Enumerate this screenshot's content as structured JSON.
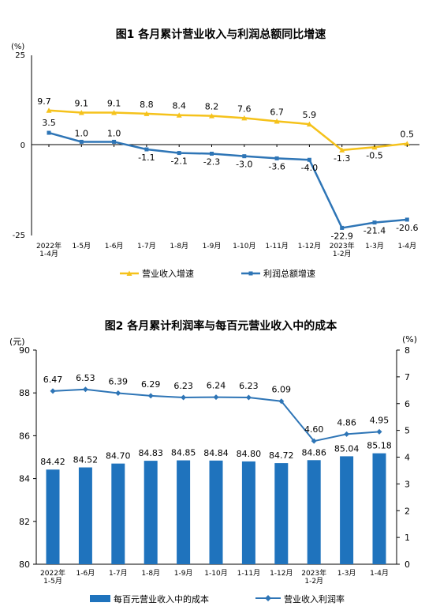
{
  "chart_data": [
    {
      "type": "line",
      "title": "图1  各月累计营业收入与利润总额同比增速",
      "yunit": "(%)",
      "ylim": [
        -25,
        25
      ],
      "yticks": [
        "25",
        "0",
        "-25"
      ],
      "categories": [
        "2022年\n1-4月",
        "1-5月",
        "1-6月",
        "1-7月",
        "1-8月",
        "1-9月",
        "1-10月",
        "1-11月",
        "1-12月",
        "2023年\n1-2月",
        "1-3月",
        "1-4月"
      ],
      "series": [
        {
          "name": "营业收入增速",
          "color": "#f5c21b",
          "marker": "triangle",
          "values": [
            9.7,
            9.1,
            9.1,
            8.8,
            8.4,
            8.2,
            7.6,
            6.7,
            5.9,
            -1.3,
            -0.5,
            0.5
          ],
          "labels": [
            "9.7",
            "9.1",
            "9.1",
            "8.8",
            "8.4",
            "8.2",
            "7.6",
            "6.7",
            "5.9",
            "-1.3",
            "-0.5",
            "0.5"
          ]
        },
        {
          "name": "利润总额增速",
          "color": "#2e75b6",
          "marker": "square",
          "values": [
            3.5,
            1.0,
            1.0,
            -1.1,
            -2.1,
            -2.3,
            -3.0,
            -3.6,
            -4.0,
            -22.9,
            -21.4,
            -20.6
          ],
          "labels": [
            "3.5",
            "1.0",
            "1.0",
            "-1.1",
            "-2.1",
            "-2.3",
            "-3.0",
            "-3.6",
            "-4.0",
            "-22.9",
            "-21.4",
            "-20.6"
          ]
        }
      ],
      "legend": "bottom",
      "grid": false
    },
    {
      "type": "bar",
      "title": "图2  各月累计利润率与每百元营业收入中的成本",
      "yunit_left": "(元)",
      "yunit_right": "(%)",
      "ylim_left": [
        80,
        90
      ],
      "ylim_right": [
        0,
        8
      ],
      "yticks_left": [
        "90",
        "88",
        "86",
        "84",
        "82",
        "80"
      ],
      "yticks_right": [
        "8",
        "7",
        "6",
        "5",
        "4",
        "3",
        "2",
        "1",
        "0"
      ],
      "categories": [
        "2022年\n1-5月",
        "1-6月",
        "1-7月",
        "1-8月",
        "1-9月",
        "1-10月",
        "1-11月",
        "1-12月",
        "2023年\n1-2月",
        "1-3月",
        "1-4月"
      ],
      "series": [
        {
          "name": "每百元营业收入中的成本",
          "type": "bar",
          "axis": "left",
          "color": "#1f73bd",
          "values": [
            84.42,
            84.52,
            84.7,
            84.83,
            84.85,
            84.84,
            84.8,
            84.72,
            84.86,
            85.04,
            85.18
          ],
          "labels": [
            "84.42",
            "84.52",
            "84.70",
            "84.83",
            "84.85",
            "84.84",
            "84.80",
            "84.72",
            "84.86",
            "85.04",
            "85.18"
          ]
        },
        {
          "name": "营业收入利润率",
          "type": "line",
          "axis": "right",
          "color": "#2e75b6",
          "marker": "diamond",
          "values": [
            6.47,
            6.53,
            6.39,
            6.29,
            6.23,
            6.24,
            6.23,
            6.09,
            4.6,
            4.86,
            4.95
          ],
          "labels": [
            "6.47",
            "6.53",
            "6.39",
            "6.29",
            "6.23",
            "6.24",
            "6.23",
            "6.09",
            "4.60",
            "4.86",
            "4.95"
          ]
        }
      ],
      "legend": "bottom",
      "grid": false
    }
  ]
}
